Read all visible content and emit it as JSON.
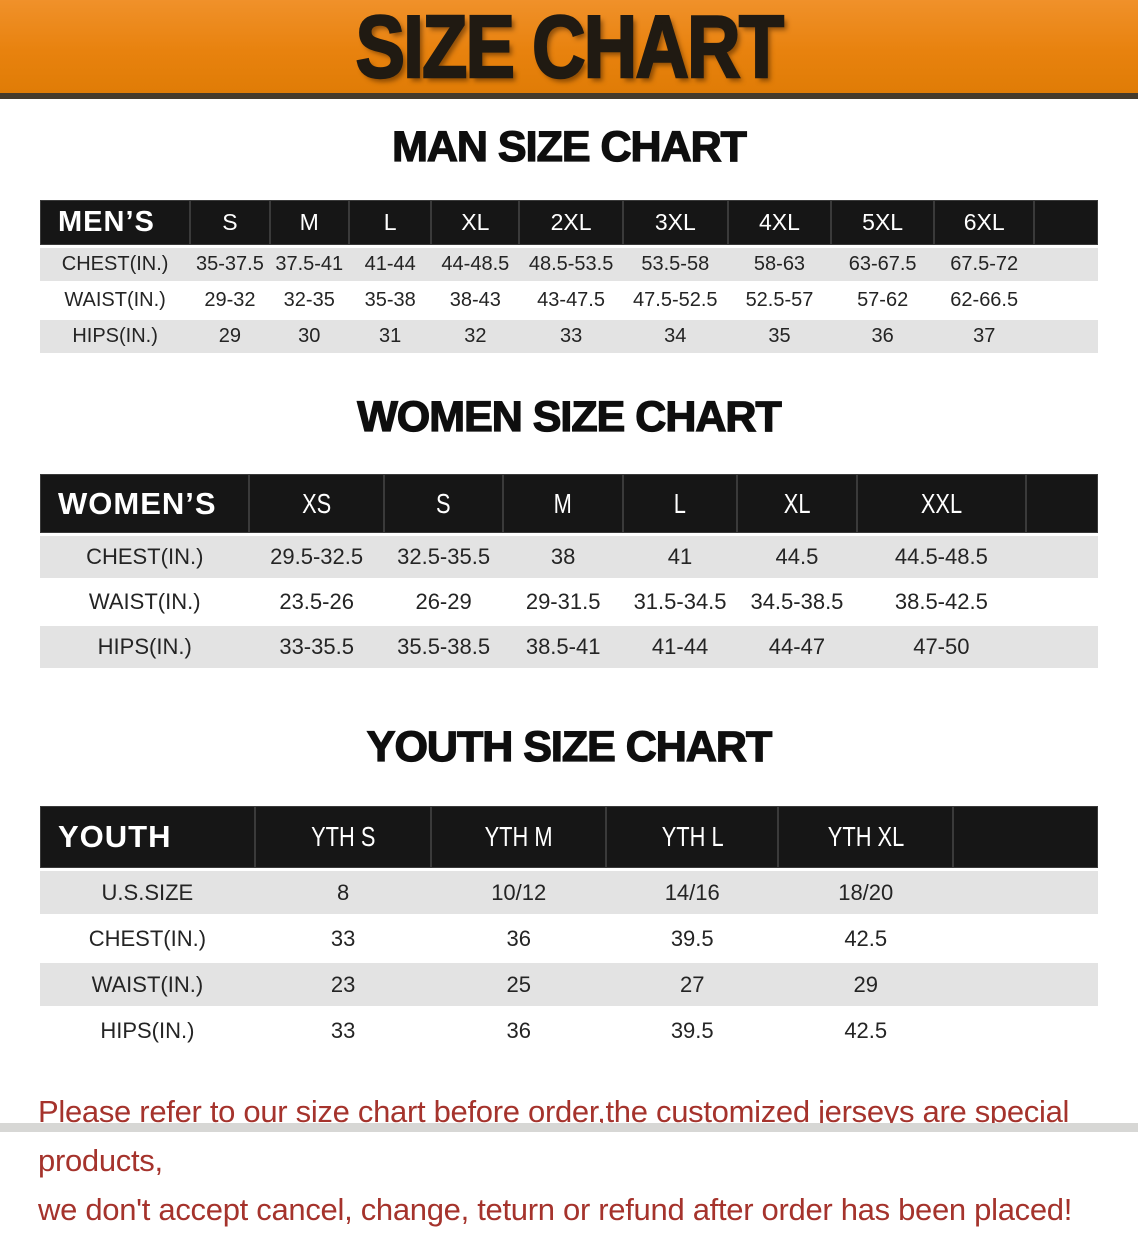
{
  "banner": {
    "title": "SIZE CHART"
  },
  "colors": {
    "banner_orange": "#e8820e",
    "banner_orange_light": "#f0912a",
    "header_black": "#161616",
    "row_gray": "#e3e3e3",
    "note_red": "#a5332c"
  },
  "sections": [
    {
      "id": "men",
      "heading": "MAN SIZE CHART",
      "table": {
        "label": "MEN’S",
        "columns": [
          "S",
          "M",
          "L",
          "XL",
          "2XL",
          "3XL",
          "4XL",
          "5XL",
          "6XL"
        ],
        "rows": [
          {
            "label": "CHEST(IN.)",
            "values": [
              "35-37.5",
              "37.5-41",
              "41-44",
              "44-48.5",
              "48.5-53.5",
              "53.5-58",
              "58-63",
              "63-67.5",
              "67.5-72"
            ]
          },
          {
            "label": "WAIST(IN.)",
            "values": [
              "29-32",
              "32-35",
              "35-38",
              "38-43",
              "43-47.5",
              "47.5-52.5",
              "52.5-57",
              "57-62",
              "62-66.5"
            ]
          },
          {
            "label": "HIPS(IN.)",
            "values": [
              "29",
              "30",
              "31",
              "32",
              "33",
              "34",
              "35",
              "36",
              "37"
            ]
          }
        ]
      }
    },
    {
      "id": "women",
      "heading": "WOMEN SIZE CHART",
      "table": {
        "label": "WOMEN’S",
        "columns": [
          "XS",
          "S",
          "M",
          "L",
          "XL",
          "XXL"
        ],
        "rows": [
          {
            "label": "CHEST(IN.)",
            "values": [
              "29.5-32.5",
              "32.5-35.5",
              "38",
              "41",
              "44.5",
              "44.5-48.5"
            ]
          },
          {
            "label": "WAIST(IN.)",
            "values": [
              "23.5-26",
              "26-29",
              "29-31.5",
              "31.5-34.5",
              "34.5-38.5",
              "38.5-42.5"
            ]
          },
          {
            "label": "HIPS(IN.)",
            "values": [
              "33-35.5",
              "35.5-38.5",
              "38.5-41",
              "41-44",
              "44-47",
              "47-50"
            ]
          }
        ]
      }
    },
    {
      "id": "youth",
      "heading": "YOUTH SIZE CHART",
      "table": {
        "label": "YOUTH",
        "columns": [
          "YTH S",
          "YTH M",
          "YTH L",
          "YTH XL"
        ],
        "rows": [
          {
            "label": "U.S.SIZE",
            "values": [
              "8",
              "10/12",
              "14/16",
              "18/20"
            ]
          },
          {
            "label": "CHEST(IN.)",
            "values": [
              "33",
              "36",
              "39.5",
              "42.5"
            ]
          },
          {
            "label": "WAIST(IN.)",
            "values": [
              "23",
              "25",
              "27",
              "29"
            ]
          },
          {
            "label": "HIPS(IN.)",
            "values": [
              "33",
              "36",
              "39.5",
              "42.5"
            ]
          }
        ]
      }
    }
  ],
  "note": {
    "line1": "Please refer to our size chart before order,the customized jerseys are special products,",
    "line2": "we don't accept cancel, change, teturn or refund after order has been placed!"
  }
}
